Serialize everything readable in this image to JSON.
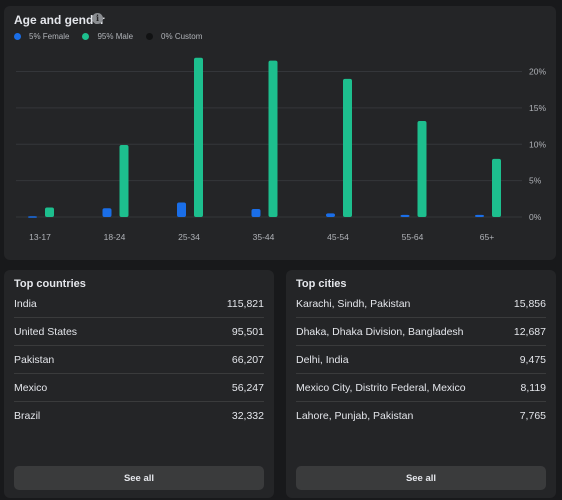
{
  "age_gender": {
    "title": "Age and gender",
    "legend": [
      {
        "label": "5% Female",
        "color": "#1a6ee8"
      },
      {
        "label": "95% Male",
        "color": "#1dbf8e"
      },
      {
        "label": "0% Custom",
        "color": "#111213"
      }
    ]
  },
  "chart_data": {
    "type": "bar",
    "categories": [
      "13-17",
      "18-24",
      "25-34",
      "35-44",
      "45-54",
      "55-64",
      "65+"
    ],
    "series": [
      {
        "name": "Female",
        "values": [
          0.1,
          1.2,
          2.0,
          1.1,
          0.5,
          0.3,
          0.3
        ],
        "color": "#1a6ee8"
      },
      {
        "name": "Male",
        "values": [
          1.3,
          9.9,
          21.9,
          21.5,
          19.0,
          13.2,
          8.0
        ],
        "color": "#1dbf8e"
      }
    ],
    "yticks": [
      "0%",
      "5%",
      "10%",
      "15%",
      "20%"
    ],
    "ylim": [
      0,
      22
    ],
    "grid": true
  },
  "top_countries": {
    "title": "Top countries",
    "rows": [
      {
        "name": "India",
        "value": "115,821"
      },
      {
        "name": "United States",
        "value": "95,501"
      },
      {
        "name": "Pakistan",
        "value": "66,207"
      },
      {
        "name": "Mexico",
        "value": "56,247"
      },
      {
        "name": "Brazil",
        "value": "32,332"
      }
    ],
    "see_all": "See all"
  },
  "top_cities": {
    "title": "Top cities",
    "rows": [
      {
        "name": "Karachi, Sindh, Pakistan",
        "value": "15,856"
      },
      {
        "name": "Dhaka, Dhaka Division, Bangladesh",
        "value": "12,687"
      },
      {
        "name": "Delhi, India",
        "value": "9,475"
      },
      {
        "name": "Mexico City, Distrito Federal, Mexico",
        "value": "8,119"
      },
      {
        "name": "Lahore, Punjab, Pakistan",
        "value": "7,765"
      }
    ],
    "see_all": "See all"
  }
}
